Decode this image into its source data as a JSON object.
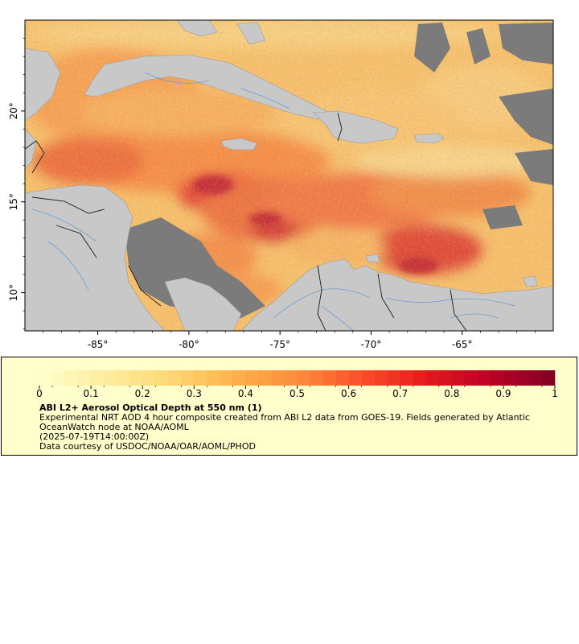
{
  "map": {
    "lon_range": [
      -89,
      -60
    ],
    "lat_range": [
      7.9,
      25
    ],
    "lon_ticks": [
      -85,
      -80,
      -75,
      -70,
      -65
    ],
    "lon_tick_labels": [
      "-85°",
      "-80°",
      "-75°",
      "-70°",
      "-65°"
    ],
    "lat_ticks": [
      10,
      15,
      20
    ],
    "lat_tick_labels": [
      "10°",
      "15°",
      "20°"
    ],
    "colors": {
      "land": "#c8c8c8",
      "no_data": "#7b7b7b",
      "rivers": "#6a9fd4",
      "borders": "#1a1a1a",
      "legend_background": "#ffffcc"
    }
  },
  "legend": {
    "ticks": [
      "0",
      "0.1",
      "0.2",
      "0.3",
      "0.4",
      "0.5",
      "0.6",
      "0.7",
      "0.8",
      "0.9",
      "1"
    ],
    "range": [
      0,
      1
    ],
    "colormap": [
      "#ffffcc",
      "#ffeda0",
      "#fed976",
      "#feb24c",
      "#fd8d3c",
      "#fc4e2a",
      "#e31a1c",
      "#bd0026",
      "#800026"
    ],
    "title": "ABI L2+ Aerosol Optical Depth at 550 nm (1)",
    "description_line1": "Experimental NRT AOD 4 hour composite created from ABI L2 data from GOES-19. Fields generated by Atlantic",
    "description_line2": "OceanWatch node at NOAA/AOML",
    "date": "(2025-07-19T14:00:00Z)",
    "credit": "Data courtesy of USDOC/NOAA/OAR/AOML/PHOD"
  }
}
